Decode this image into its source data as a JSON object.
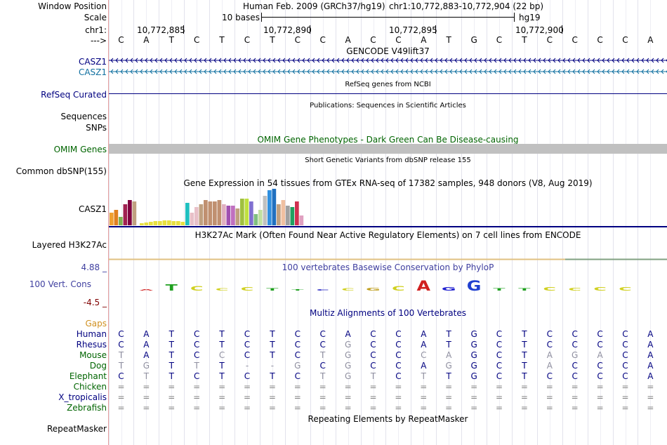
{
  "labels": {
    "window_position": "Window Position",
    "scale": "Scale",
    "chrom": "chr1:",
    "arrow": "--->",
    "casz1_a": "CASZ1",
    "casz1_b": "CASZ1",
    "refseq": "RefSeq Curated",
    "sequences": "Sequences",
    "snps": "SNPs",
    "omim": "OMIM Genes",
    "common_dbsnp": "Common dbSNP(155)",
    "gtex_gene": "CASZ1",
    "layered": "Layered H3K27Ac",
    "cons_max": "4.88 _",
    "cons_name": "100 Vert. Cons",
    "cons_min": "-4.5 _",
    "gaps": "Gaps",
    "repeatmasker": "RepeatMasker"
  },
  "header": {
    "assembly_text": "Human Feb. 2009 (GRCh37/hg19)",
    "position_text": "chr1:10,772,883-10,772,904 (22 bp)",
    "scale_bar_label": "10 bases",
    "scale_db": "hg19",
    "ticks": [
      "10,772,885",
      "10,772,890",
      "10,772,895",
      "10,772,900"
    ]
  },
  "sequence": [
    "C",
    "A",
    "T",
    "C",
    "T",
    "C",
    "T",
    "C",
    "C",
    "A",
    "C",
    "C",
    "A",
    "T",
    "G",
    "C",
    "T",
    "C",
    "C",
    "C",
    "C",
    "A"
  ],
  "tracks": {
    "gencode_title": "GENCODE V49lift37",
    "refseq_title": "RefSeq genes from NCBI",
    "pubs_title": "Publications: Sequences in Scientific Articles",
    "omim_title": "OMIM Gene Phenotypes - Dark Green Can Be Disease-causing",
    "dbsnp_title": "Short Genetic Variants from dbSNP release 155",
    "gtex_title": "Gene Expression in 54 tissues from GTEx RNA-seq of 17382 samples, 948 donors (V8, Aug 2019)",
    "h3k27_title": "H3K27Ac Mark (Often Found Near Active Regulatory Elements) on 7 cell lines from ENCODE",
    "phylop_title": "100 vertebrates Basewise Conservation by PhyloP",
    "multiz_title": "Multiz Alignments of 100 Vertebrates",
    "rmsk_title": "Repeating Elements by RepeatMasker"
  },
  "gtex_bars": [
    {
      "color": "#f0a030",
      "value": 18
    },
    {
      "color": "#e08020",
      "value": 22
    },
    {
      "color": "#7fb050",
      "value": 12
    },
    {
      "color": "#a02050",
      "value": 30
    },
    {
      "color": "#800040",
      "value": 36
    },
    {
      "color": "#c0a080",
      "value": 34
    },
    {
      "color": "#e8e040",
      "value": 3
    },
    {
      "color": "#e8e040",
      "value": 4
    },
    {
      "color": "#e8e040",
      "value": 5
    },
    {
      "color": "#e8e040",
      "value": 6
    },
    {
      "color": "#e8e040",
      "value": 6
    },
    {
      "color": "#e8e040",
      "value": 7
    },
    {
      "color": "#e8e040",
      "value": 7
    },
    {
      "color": "#e8e040",
      "value": 6
    },
    {
      "color": "#e8e040",
      "value": 6
    },
    {
      "color": "#e8e040",
      "value": 5
    },
    {
      "color": "#20c0c0",
      "value": 32
    },
    {
      "color": "#e8c0c8",
      "value": 18
    },
    {
      "color": "#e8c0c8",
      "value": 26
    },
    {
      "color": "#c0a080",
      "value": 30
    },
    {
      "color": "#c09070",
      "value": 36
    },
    {
      "color": "#c09070",
      "value": 34
    },
    {
      "color": "#c09070",
      "value": 34
    },
    {
      "color": "#c09070",
      "value": 36
    },
    {
      "color": "#e0b0c0",
      "value": 30
    },
    {
      "color": "#a050b0",
      "value": 28
    },
    {
      "color": "#c070c0",
      "value": 28
    },
    {
      "color": "#c0a080",
      "value": 24
    },
    {
      "color": "#a0c040",
      "value": 38
    },
    {
      "color": "#c0e040",
      "value": 38
    },
    {
      "color": "#8070d0",
      "value": 34
    },
    {
      "color": "#80c080",
      "value": 16
    },
    {
      "color": "#c0e0a0",
      "value": 22
    },
    {
      "color": "#c0c0c0",
      "value": 42
    },
    {
      "color": "#3090e0",
      "value": 50
    },
    {
      "color": "#2070c0",
      "value": 52
    },
    {
      "color": "#c0a080",
      "value": 30
    },
    {
      "color": "#f0c0a0",
      "value": 36
    },
    {
      "color": "#a0a0a0",
      "value": 28
    },
    {
      "color": "#20a060",
      "value": 26
    },
    {
      "color": "#d03050",
      "value": 34
    },
    {
      "color": "#e0a0c0",
      "value": 14
    }
  ],
  "alignment": [
    {
      "species": "Human",
      "color": "#000080",
      "bases": [
        "C",
        "A",
        "T",
        "C",
        "T",
        "C",
        "T",
        "C",
        "C",
        "A",
        "C",
        "C",
        "A",
        "T",
        "G",
        "C",
        "T",
        "C",
        "C",
        "C",
        "C",
        "A"
      ]
    },
    {
      "species": "Rhesus",
      "color": "#000080",
      "bases": [
        "C",
        "A",
        "T",
        "C",
        "T",
        "C",
        "T",
        "C",
        "C",
        "G",
        "C",
        "C",
        "A",
        "T",
        "G",
        "C",
        "T",
        "C",
        "C",
        "C",
        "C",
        "A"
      ]
    },
    {
      "species": "Mouse",
      "color": "#006400",
      "bases": [
        "T",
        "A",
        "T",
        "C",
        "C",
        "C",
        "T",
        "C",
        "T",
        "G",
        "C",
        "C",
        "C",
        "A",
        "G",
        "C",
        "T",
        "A",
        "G",
        "A",
        "C",
        "A"
      ]
    },
    {
      "species": "Dog",
      "color": "#006400",
      "bases": [
        "T",
        "G",
        "T",
        "T",
        "T",
        "-",
        "-",
        "G",
        "C",
        "G",
        "C",
        "C",
        "A",
        "G",
        "G",
        "C",
        "T",
        "A",
        "C",
        "C",
        "C",
        "A"
      ]
    },
    {
      "species": "Elephant",
      "color": "#006400",
      "bases": [
        "C",
        "T",
        "T",
        "C",
        "T",
        "C",
        "T",
        "C",
        "T",
        "G",
        "T",
        "C",
        "T",
        "T",
        "G",
        "C",
        "T",
        "C",
        "C",
        "C",
        "C",
        "A"
      ]
    },
    {
      "species": "Chicken",
      "color": "#006400",
      "bases": [
        "=",
        "=",
        "=",
        "=",
        "=",
        "=",
        "=",
        "=",
        "=",
        "=",
        "=",
        "=",
        "=",
        "=",
        "=",
        "=",
        "=",
        "=",
        "=",
        "=",
        "=",
        "="
      ]
    },
    {
      "species": "X_tropicalis",
      "color": "#000080",
      "bases": [
        "=",
        "=",
        "=",
        "=",
        "=",
        "=",
        "=",
        "=",
        "=",
        "=",
        "=",
        "=",
        "=",
        "=",
        "=",
        "=",
        "=",
        "=",
        "=",
        "=",
        "=",
        "="
      ]
    },
    {
      "species": "Zebrafish",
      "color": "#006400",
      "bases": [
        "=",
        "=",
        "=",
        "=",
        "=",
        "=",
        "=",
        "=",
        "=",
        "=",
        "=",
        "=",
        "=",
        "=",
        "=",
        "=",
        "=",
        "=",
        "=",
        "=",
        "=",
        "="
      ]
    }
  ],
  "phylop_letters": [
    {
      "base": "A",
      "color": "#d02020",
      "score": 0.2
    },
    {
      "base": "T",
      "color": "#20a020",
      "score": 0.9
    },
    {
      "base": "C",
      "color": "#d0d020",
      "score": 0.6
    },
    {
      "base": "C",
      "color": "#d0d020",
      "score": 0.3
    },
    {
      "base": "C",
      "color": "#d0d020",
      "score": 0.5
    },
    {
      "base": "T",
      "color": "#20a020",
      "score": 0.3
    },
    {
      "base": "T",
      "color": "#20a020",
      "score": 0.2
    },
    {
      "base": "C",
      "color": "#2020c0",
      "score": 0.2
    },
    {
      "base": "C",
      "color": "#d0d020",
      "score": 0.3
    },
    {
      "base": "G",
      "color": "#c0a020",
      "score": 0.4
    },
    {
      "base": "C",
      "color": "#d0d020",
      "score": 0.6
    },
    {
      "base": "A",
      "color": "#d02020",
      "score": 1.4
    },
    {
      "base": "G",
      "color": "#2020d0",
      "score": 0.5
    },
    {
      "base": "G",
      "color": "#2040d0",
      "score": 1.4
    },
    {
      "base": "T",
      "color": "#20a020",
      "score": 0.3
    },
    {
      "base": "T",
      "color": "#20a020",
      "score": 0.3
    },
    {
      "base": "C",
      "color": "#d0d020",
      "score": 0.5
    },
    {
      "base": "C",
      "color": "#d0d020",
      "score": 0.4
    },
    {
      "base": "C",
      "color": "#d0d020",
      "score": 0.5
    },
    {
      "base": "C",
      "color": "#d0d020",
      "score": 0.5
    }
  ],
  "colors": {
    "navy": "#000080",
    "teal": "#1070a0",
    "omim_green": "#006400",
    "omim_bar": "#c0c0c0",
    "gaps": "#d09020",
    "cons": "#4040a0",
    "cons_min": "#800000"
  }
}
